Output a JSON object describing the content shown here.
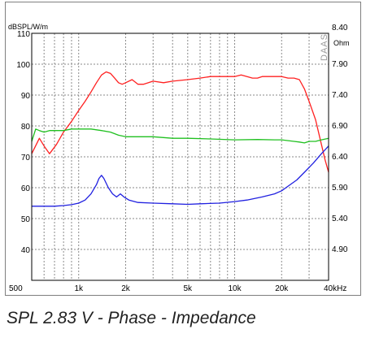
{
  "caption": "SPL 2.83 V - Phase - Impedance",
  "chart_data": {
    "type": "line",
    "left_axis_unit": "dBSPL/W/m",
    "right_axis_unit": "Ohm",
    "watermark": "DAAS",
    "x_scale": "log",
    "xlim": [
      500,
      40000
    ],
    "x_ticks": [
      500,
      1000,
      2000,
      5000,
      10000,
      20000,
      40000
    ],
    "x_tick_labels": [
      "500",
      "1k",
      "2k",
      "5k",
      "10k",
      "20k",
      "40kHz"
    ],
    "ylim": [
      30,
      110
    ],
    "y_ticks": [
      40,
      50,
      60,
      70,
      80,
      90,
      100,
      110
    ],
    "y_tick_labels": [
      "40",
      "50",
      "60",
      "70",
      "80",
      "90",
      "100",
      "110"
    ],
    "y2lim": [
      4.4,
      8.4
    ],
    "y2_ticks": [
      4.9,
      5.4,
      5.9,
      6.4,
      6.9,
      7.4,
      7.9,
      8.4
    ],
    "y2_tick_labels": [
      "4.90",
      "5.40",
      "5.90",
      "6.40",
      "6.90",
      "7.40",
      "7.90",
      "8.40"
    ],
    "grid": true,
    "series": [
      {
        "color": "#ff2020",
        "points": [
          [
            500,
            71
          ],
          [
            560,
            76
          ],
          [
            600,
            73.5
          ],
          [
            650,
            71
          ],
          [
            720,
            74
          ],
          [
            800,
            78
          ],
          [
            900,
            81.5
          ],
          [
            1000,
            85
          ],
          [
            1100,
            88
          ],
          [
            1200,
            91
          ],
          [
            1300,
            94
          ],
          [
            1400,
            96.5
          ],
          [
            1500,
            97.5
          ],
          [
            1600,
            97
          ],
          [
            1700,
            95.5
          ],
          [
            1800,
            94
          ],
          [
            1900,
            93.5
          ],
          [
            2000,
            94
          ],
          [
            2200,
            95
          ],
          [
            2400,
            93.5
          ],
          [
            2600,
            93.5
          ],
          [
            2800,
            94
          ],
          [
            3000,
            94.5
          ],
          [
            3500,
            94
          ],
          [
            4000,
            94.5
          ],
          [
            5000,
            95
          ],
          [
            6000,
            95.5
          ],
          [
            7000,
            96
          ],
          [
            8000,
            96
          ],
          [
            9000,
            96
          ],
          [
            10000,
            96
          ],
          [
            11000,
            96.5
          ],
          [
            12000,
            96
          ],
          [
            13000,
            95.5
          ],
          [
            14000,
            95.5
          ],
          [
            15000,
            96
          ],
          [
            17000,
            96
          ],
          [
            20000,
            96
          ],
          [
            22000,
            95.5
          ],
          [
            24000,
            95.5
          ],
          [
            26000,
            95
          ],
          [
            28000,
            92
          ],
          [
            30000,
            88
          ],
          [
            33000,
            82
          ],
          [
            36000,
            74
          ],
          [
            38000,
            69
          ],
          [
            40000,
            65
          ]
        ]
      },
      {
        "color": "#20c020",
        "points": [
          [
            500,
            75
          ],
          [
            530,
            79
          ],
          [
            560,
            78.5
          ],
          [
            600,
            78
          ],
          [
            650,
            78.5
          ],
          [
            700,
            78.5
          ],
          [
            800,
            78.5
          ],
          [
            900,
            79
          ],
          [
            1000,
            79
          ],
          [
            1100,
            79
          ],
          [
            1200,
            79
          ],
          [
            1400,
            78.5
          ],
          [
            1600,
            78
          ],
          [
            1800,
            77
          ],
          [
            2000,
            76.5
          ],
          [
            3000,
            76.5
          ],
          [
            4000,
            76
          ],
          [
            5000,
            76
          ],
          [
            7000,
            75.8
          ],
          [
            10000,
            75.5
          ],
          [
            14000,
            75.6
          ],
          [
            18000,
            75.5
          ],
          [
            20000,
            75.5
          ],
          [
            24000,
            75
          ],
          [
            26000,
            74.8
          ],
          [
            28000,
            74.5
          ],
          [
            30000,
            75
          ],
          [
            33000,
            75
          ],
          [
            36000,
            75.5
          ],
          [
            40000,
            76
          ]
        ]
      },
      {
        "color": "#2020e0",
        "points": [
          [
            500,
            54
          ],
          [
            600,
            54
          ],
          [
            700,
            54
          ],
          [
            800,
            54.2
          ],
          [
            900,
            54.5
          ],
          [
            1000,
            55
          ],
          [
            1100,
            56
          ],
          [
            1200,
            58
          ],
          [
            1300,
            61
          ],
          [
            1350,
            63
          ],
          [
            1400,
            64
          ],
          [
            1450,
            63
          ],
          [
            1550,
            60
          ],
          [
            1650,
            58
          ],
          [
            1750,
            57
          ],
          [
            1850,
            58
          ],
          [
            1950,
            57
          ],
          [
            2100,
            56
          ],
          [
            2400,
            55.2
          ],
          [
            3000,
            55
          ],
          [
            4000,
            54.8
          ],
          [
            5000,
            54.6
          ],
          [
            6000,
            54.8
          ],
          [
            8000,
            55
          ],
          [
            10000,
            55.5
          ],
          [
            12000,
            56
          ],
          [
            15000,
            57
          ],
          [
            18000,
            58
          ],
          [
            20000,
            59
          ],
          [
            22000,
            60.5
          ],
          [
            25000,
            62.5
          ],
          [
            28000,
            65
          ],
          [
            32000,
            68
          ],
          [
            36000,
            71
          ],
          [
            40000,
            73.5
          ]
        ]
      }
    ]
  }
}
